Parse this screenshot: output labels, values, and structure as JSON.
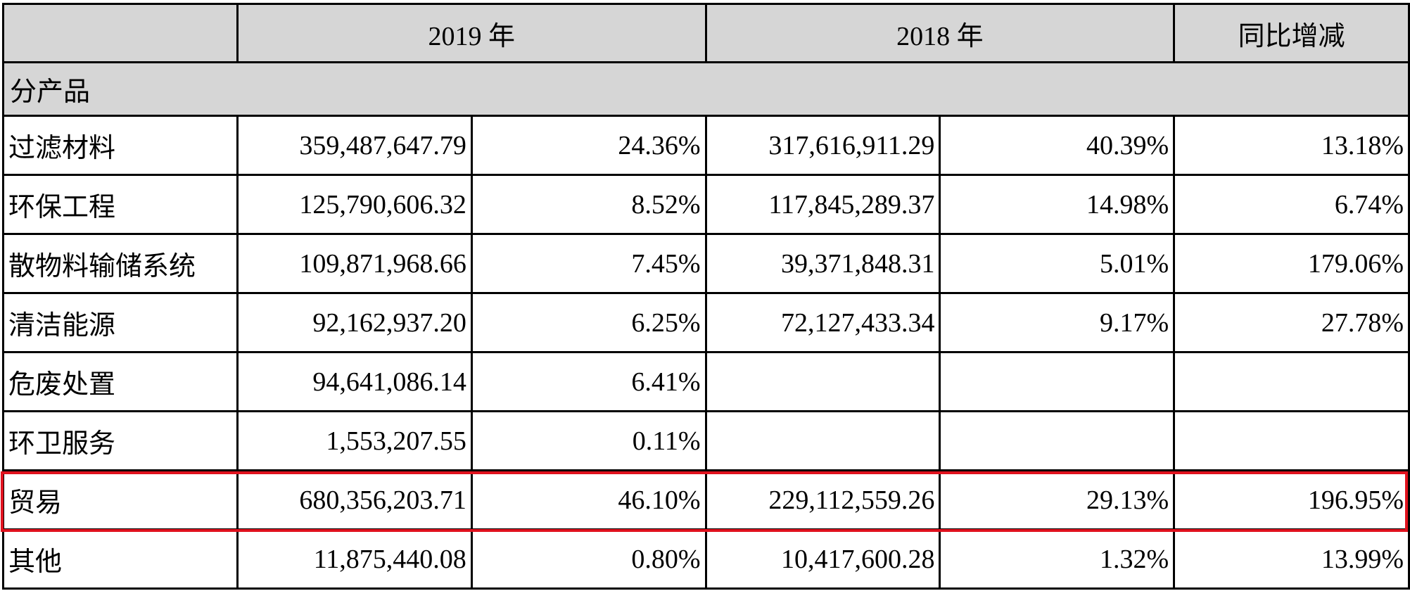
{
  "header": {
    "blank": "",
    "year_2019": "2019 年",
    "year_2018": "2018 年",
    "yoy": "同比增减"
  },
  "section_label": "分产品",
  "rows": [
    {
      "name": "过滤材料",
      "amount_2019": "359,487,647.79",
      "pct_2019": "24.36%",
      "amount_2018": "317,616,911.29",
      "pct_2018": "40.39%",
      "yoy": "13.18%"
    },
    {
      "name": "环保工程",
      "amount_2019": "125,790,606.32",
      "pct_2019": "8.52%",
      "amount_2018": "117,845,289.37",
      "pct_2018": "14.98%",
      "yoy": "6.74%"
    },
    {
      "name": "散物料输储系统",
      "amount_2019": "109,871,968.66",
      "pct_2019": "7.45%",
      "amount_2018": "39,371,848.31",
      "pct_2018": "5.01%",
      "yoy": "179.06%"
    },
    {
      "name": "清洁能源",
      "amount_2019": "92,162,937.20",
      "pct_2019": "6.25%",
      "amount_2018": "72,127,433.34",
      "pct_2018": "9.17%",
      "yoy": "27.78%"
    },
    {
      "name": "危废处置",
      "amount_2019": "94,641,086.14",
      "pct_2019": "6.41%",
      "amount_2018": "",
      "pct_2018": "",
      "yoy": ""
    },
    {
      "name": "环卫服务",
      "amount_2019": "1,553,207.55",
      "pct_2019": "0.11%",
      "amount_2018": "",
      "pct_2018": "",
      "yoy": ""
    },
    {
      "name": "贸易",
      "amount_2019": "680,356,203.71",
      "pct_2019": "46.10%",
      "amount_2018": "229,112,559.26",
      "pct_2018": "29.13%",
      "yoy": "196.95%",
      "highlighted": true
    },
    {
      "name": "其他",
      "amount_2019": "11,875,440.08",
      "pct_2019": "0.80%",
      "amount_2018": "10,417,600.28",
      "pct_2018": "1.32%",
      "yoy": "13.99%"
    }
  ],
  "highlight_color": "#e0121e",
  "header_bg": "#d6d6d6"
}
